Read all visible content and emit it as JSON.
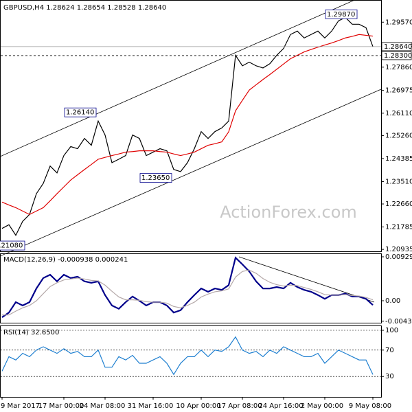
{
  "chart_data": [
    {
      "type": "line",
      "title": "GBPUSD,H4  1.28624 1.28654 1.28528 1.28640",
      "watermark": "ActionForex.com",
      "categories": [
        "9 Mar 2017",
        null,
        null,
        null,
        null,
        null,
        null,
        null,
        null,
        "17 Mar 00:00",
        null,
        null,
        null,
        null,
        null,
        "24 Mar 08:00",
        null,
        null,
        null,
        null,
        null,
        null,
        "31 Mar 16:00",
        null,
        null,
        null,
        null,
        null,
        null,
        "10 Apr 00:00",
        null,
        null,
        null,
        null,
        null,
        "17 Apr 08:00",
        null,
        null,
        null,
        null,
        null,
        "24 Apr 16:00",
        null,
        null,
        null,
        null,
        null,
        "2 May 00:00",
        null,
        null,
        null,
        null,
        null,
        null,
        "9 May 08:00"
      ],
      "ylim": [
        1.2086,
        1.30412
      ],
      "yticks": [
        {
          "value": 1.2957,
          "label": "1.29570"
        },
        1.28705,
        {
          "value": 1.2786,
          "label": "1.27860"
        },
        1.26975,
        {
          "value": 1.2611,
          "label": "1.26110"
        },
        {
          "value": 1.2526,
          "label": "1.25260"
        },
        1.24385,
        {
          "value": 1.2351,
          "label": "1.23510"
        },
        {
          "value": 1.2266,
          "label": "1.22660"
        },
        1.21785,
        1.20935
      ],
      "grid": false,
      "series": [
        {
          "name": "GBPUSD",
          "color": "#000000",
          "values": [
            1.2173,
            1.2187,
            1.2147,
            1.22,
            1.2226,
            1.2305,
            1.2344,
            1.241,
            1.2384,
            1.245,
            1.2484,
            1.2476,
            1.2515,
            1.2489,
            1.2581,
            1.2528,
            1.2423,
            1.2436,
            1.245,
            1.2528,
            1.2515,
            1.245,
            1.2463,
            1.2476,
            1.2468,
            1.2397,
            1.2389,
            1.2423,
            1.2476,
            1.2541,
            1.2515,
            1.2541,
            1.2555,
            1.2581,
            1.2831,
            1.2791,
            1.2805,
            1.2791,
            1.2783,
            1.2799,
            1.2831,
            1.2857,
            1.291,
            1.2923,
            1.2897,
            1.291,
            1.2923,
            1.2897,
            1.2923,
            1.2962,
            1.2975,
            1.2949,
            1.2949,
            1.2936,
            1.2864
          ]
        },
        {
          "name": "MA",
          "color": "#e00000",
          "values": [
            1.2273,
            1.2262,
            1.2252,
            1.2239,
            1.2226,
            1.2239,
            1.2252,
            1.2278,
            1.2305,
            1.2331,
            1.2357,
            1.2377,
            1.2397,
            1.2416,
            1.2436,
            1.2443,
            1.245,
            1.2456,
            1.2463,
            1.2465,
            1.2468,
            1.2468,
            1.2468,
            1.2465,
            1.2463,
            1.2456,
            1.245,
            1.2456,
            1.2463,
            1.2476,
            1.2489,
            1.2495,
            1.2502,
            1.254,
            1.262,
            1.266,
            1.2699,
            1.2719,
            1.2739,
            1.2758,
            1.2778,
            1.2798,
            1.2818,
            1.2831,
            1.2844,
            1.2853,
            1.2862,
            1.287,
            1.2878,
            1.2887,
            1.2897,
            1.2903,
            1.291,
            1.2907,
            1.2904
          ]
        }
      ],
      "annotations": [
        {
          "value": 1.2987,
          "label": "1.29870"
        },
        {
          "value": 1.2614,
          "label": "1.26140"
        },
        {
          "value": 1.2365,
          "label": "1.23650"
        },
        {
          "value": 1.2108,
          "label": "1.21080"
        }
      ],
      "price_tags": [
        {
          "value": 1.2864,
          "label": "1.28640"
        },
        {
          "value": 1.283,
          "label": "1.28300"
        }
      ]
    },
    {
      "type": "line",
      "title": "MACD(12,26,9) -0.000938 0.000241",
      "ylim": [
        -0.00465,
        0.01002
      ],
      "yticks": [
        0.009296,
        {
          "value": 0,
          "label": "0.00"
        },
        -0.004328
      ],
      "grid": false,
      "series": [
        {
          "name": "MACD",
          "color": "#00008b",
          "values": [
            -0.0035,
            -0.0025,
            -0.0003,
            -0.001,
            -0.0003,
            0.0026,
            0.0048,
            0.0055,
            0.0041,
            0.0055,
            0.0048,
            0.0051,
            0.0041,
            0.0038,
            0.0041,
            0.0012,
            -0.001,
            -0.0017,
            -0.0003,
            0.0009,
            0,
            -0.001,
            -0.0003,
            -0.0003,
            -0.001,
            -0.0025,
            -0.002,
            -0.0003,
            0.0012,
            0.0026,
            0.0019,
            0.0026,
            0.0023,
            0.0033,
            0.0091,
            0.0077,
            0.0062,
            0.0041,
            0.0026,
            0.0026,
            0.0029,
            0.0026,
            0.0038,
            0.0029,
            0.0023,
            0.0019,
            0.0012,
            0.0004,
            0.0012,
            0.0012,
            0.0015,
            0.0009,
            0.0009,
            0.0004,
            -0.0009
          ]
        },
        {
          "name": "Signal",
          "color": "#b4a8a8",
          "values": [
            -0.003,
            -0.003,
            -0.0022,
            -0.0015,
            -0.001,
            0,
            0.0015,
            0.003,
            0.0038,
            0.0044,
            0.0046,
            0.0048,
            0.0046,
            0.0043,
            0.0042,
            0.0033,
            0.002,
            0.0008,
            0.0002,
            0.0002,
            0.0001,
            -0.0002,
            -0.0003,
            -0.0003,
            -0.0005,
            -0.0012,
            -0.0015,
            -0.001,
            -0.0003,
            0.0008,
            0.0014,
            0.0019,
            0.0021,
            0.0025,
            0.005,
            0.0062,
            0.0065,
            0.0058,
            0.0047,
            0.0039,
            0.0034,
            0.0031,
            0.0033,
            0.0032,
            0.0028,
            0.0024,
            0.0019,
            0.0013,
            0.0012,
            0.0012,
            0.0013,
            0.0011,
            0.001,
            0.0007,
            0.0002
          ]
        }
      ]
    },
    {
      "type": "line",
      "title": "RSI(14) 32.6500",
      "ylim": [
        -1,
        107.3
      ],
      "yticks": [
        100,
        70,
        30
      ],
      "grid": true,
      "series": [
        {
          "name": "RSI",
          "color": "#1e7fd0",
          "values": [
            38,
            60,
            55,
            65,
            60,
            70,
            75,
            70,
            65,
            72,
            65,
            68,
            60,
            60,
            70,
            44,
            44,
            60,
            55,
            62,
            50,
            50,
            55,
            60,
            50,
            33,
            50,
            60,
            60,
            70,
            60,
            70,
            68,
            75,
            90,
            70,
            65,
            68,
            60,
            70,
            65,
            75,
            70,
            65,
            60,
            60,
            65,
            50,
            60,
            70,
            65,
            60,
            55,
            55,
            33
          ]
        }
      ]
    }
  ]
}
